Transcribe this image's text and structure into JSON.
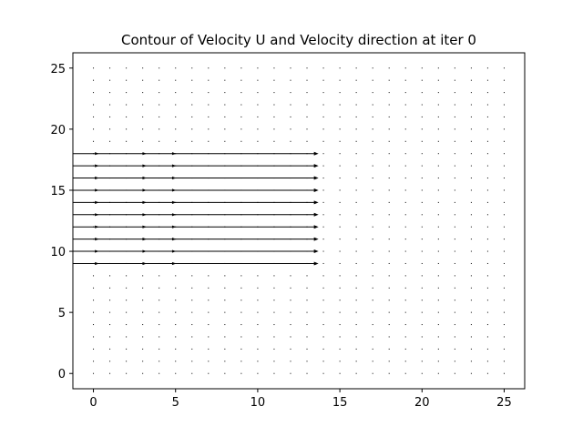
{
  "chart_data": {
    "type": "scatter",
    "title": "Contour of Velocity U and Velocity direction at iter 0",
    "xlabel": "",
    "ylabel": "",
    "xlim": [
      -1.25,
      26.25
    ],
    "ylim": [
      -1.25,
      26.25
    ],
    "x_ticks": [
      0,
      5,
      10,
      15,
      20,
      25
    ],
    "y_ticks": [
      0,
      5,
      10,
      15,
      20,
      25
    ],
    "grid": false,
    "colors": {
      "marks": "#000000",
      "frame": "#000000",
      "background": "#ffffff"
    },
    "series": [
      {
        "kind": "grid_points",
        "x": [
          0,
          1,
          2,
          3,
          4,
          5,
          6,
          7,
          8,
          9,
          10,
          11,
          12,
          13,
          14,
          15,
          16,
          17,
          18,
          19,
          20,
          21,
          22,
          23,
          24,
          25
        ],
        "y": [
          0,
          1,
          2,
          3,
          4,
          5,
          6,
          7,
          8,
          9,
          10,
          11,
          12,
          13,
          14,
          15,
          16,
          17,
          18,
          19,
          20,
          21,
          22,
          23,
          24,
          25
        ]
      },
      {
        "kind": "velocity_arrows",
        "rows_y": [
          9,
          10,
          11,
          12,
          13,
          14,
          15,
          16,
          17,
          18
        ],
        "x_start": -1.25,
        "x_end": 13.7,
        "markers_x": [
          0.2,
          3.1,
          4.9
        ]
      }
    ]
  }
}
